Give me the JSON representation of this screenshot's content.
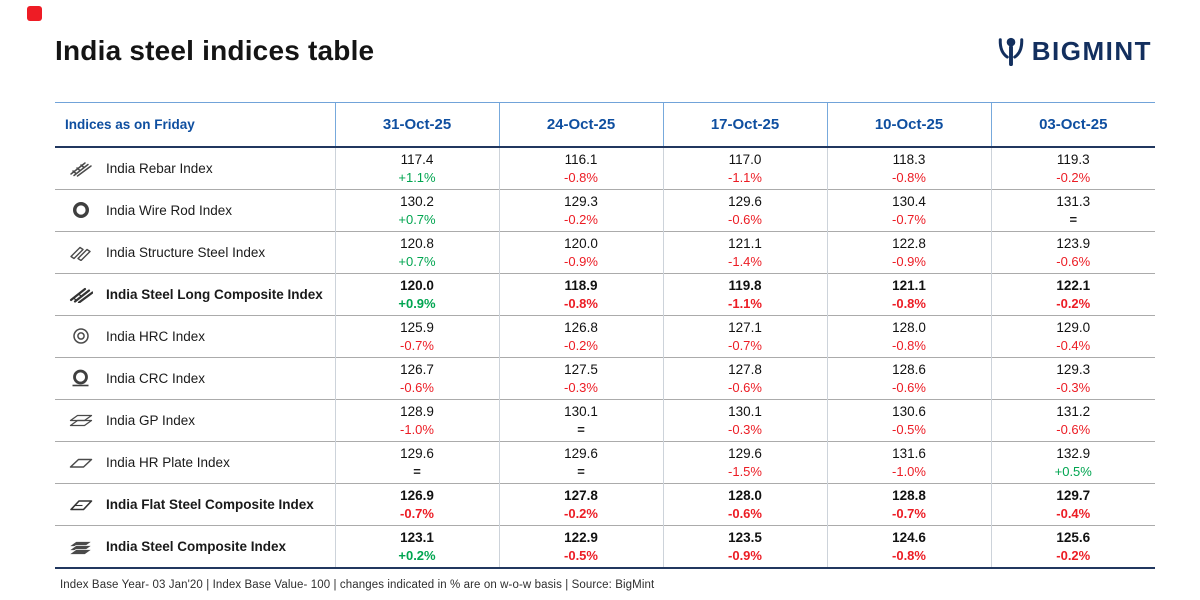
{
  "page": {
    "title": "India steel indices table",
    "brand": "BIGMINT",
    "footer": "Index Base Year- 03 Jan'20 | Index Base Value- 100 | changes indicated in % are on w-o-w basis | Source: BigMint"
  },
  "colors": {
    "up_green": "#00A550",
    "down_red": "#EC1C24",
    "neutral": "#1A1A1A",
    "header_blue": "#0F4FA0",
    "brand_navy": "#132F5E",
    "accent_red": "#EE1C25"
  },
  "chart_data": {
    "type": "table",
    "title": "India steel indices table",
    "header_label": "Indices as on Friday",
    "date_columns": [
      "31-Oct-25",
      "24-Oct-25",
      "17-Oct-25",
      "10-Oct-25",
      "03-Oct-25"
    ],
    "rows": [
      {
        "name": "India Rebar Index",
        "icon": "rebar-icon",
        "bold": false,
        "values": [
          "117.4",
          "116.1",
          "117.0",
          "118.3",
          "119.3"
        ],
        "changes": [
          "+1.1%",
          "-0.8%",
          "-1.1%",
          "-0.8%",
          "-0.2%"
        ]
      },
      {
        "name": "India Wire Rod Index",
        "icon": "wire-rod-icon",
        "bold": false,
        "values": [
          "130.2",
          "129.3",
          "129.6",
          "130.4",
          "131.3"
        ],
        "changes": [
          "+0.7%",
          "-0.2%",
          "-0.6%",
          "-0.7%",
          "="
        ]
      },
      {
        "name": "India Structure Steel Index",
        "icon": "structure-steel-icon",
        "bold": false,
        "values": [
          "120.8",
          "120.0",
          "121.1",
          "122.8",
          "123.9"
        ],
        "changes": [
          "+0.7%",
          "-0.9%",
          "-1.4%",
          "-0.9%",
          "-0.6%"
        ]
      },
      {
        "name": "India Steel Long Composite Index",
        "icon": "long-composite-icon",
        "bold": true,
        "values": [
          "120.0",
          "118.9",
          "119.8",
          "121.1",
          "122.1"
        ],
        "changes": [
          "+0.9%",
          "-0.8%",
          "-1.1%",
          "-0.8%",
          "-0.2%"
        ]
      },
      {
        "name": "India HRC Index",
        "icon": "hrc-coil-icon",
        "bold": false,
        "values": [
          "125.9",
          "126.8",
          "127.1",
          "128.0",
          "129.0"
        ],
        "changes": [
          "-0.7%",
          "-0.2%",
          "-0.7%",
          "-0.8%",
          "-0.4%"
        ]
      },
      {
        "name": "India CRC Index",
        "icon": "crc-coil-icon",
        "bold": false,
        "values": [
          "126.7",
          "127.5",
          "127.8",
          "128.6",
          "129.3"
        ],
        "changes": [
          "-0.6%",
          "-0.3%",
          "-0.6%",
          "-0.6%",
          "-0.3%"
        ]
      },
      {
        "name": "India GP Index",
        "icon": "gp-sheet-icon",
        "bold": false,
        "values": [
          "128.9",
          "130.1",
          "130.1",
          "130.6",
          "131.2"
        ],
        "changes": [
          "-1.0%",
          "=",
          "-0.3%",
          "-0.5%",
          "-0.6%"
        ]
      },
      {
        "name": "India HR Plate Index",
        "icon": "hr-plate-icon",
        "bold": false,
        "values": [
          "129.6",
          "129.6",
          "129.6",
          "131.6",
          "132.9"
        ],
        "changes": [
          "=",
          "=",
          "-1.5%",
          "-1.0%",
          "+0.5%"
        ]
      },
      {
        "name": "India Flat Steel Composite Index",
        "icon": "flat-composite-icon",
        "bold": true,
        "values": [
          "126.9",
          "127.8",
          "128.0",
          "128.8",
          "129.7"
        ],
        "changes": [
          "-0.7%",
          "-0.2%",
          "-0.6%",
          "-0.7%",
          "-0.4%"
        ]
      },
      {
        "name": "India Steel Composite Index",
        "icon": "steel-composite-icon",
        "bold": true,
        "values": [
          "123.1",
          "122.9",
          "123.5",
          "124.6",
          "125.6"
        ],
        "changes": [
          "+0.2%",
          "-0.5%",
          "-0.9%",
          "-0.8%",
          "-0.2%"
        ]
      }
    ]
  }
}
